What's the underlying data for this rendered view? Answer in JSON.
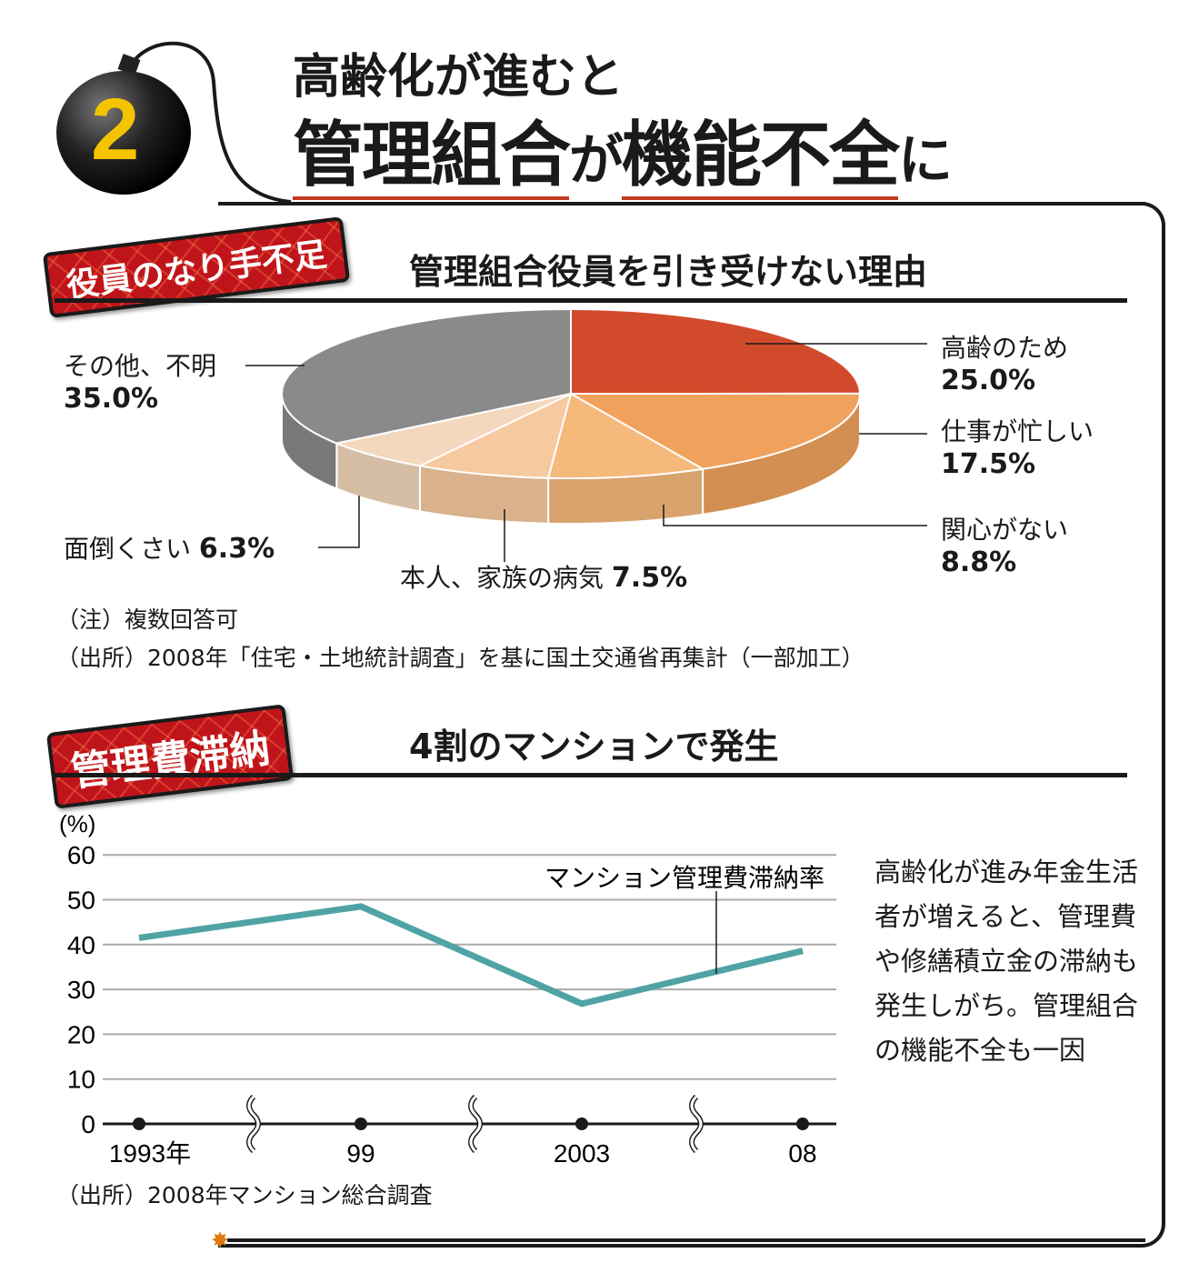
{
  "header": {
    "badge_number": "2",
    "title_line1": "高齢化が進むと",
    "title_line2_a": "管理組合",
    "title_line2_b": "が",
    "title_line2_c": "機能不全",
    "title_line2_d": "に"
  },
  "section1": {
    "tag": "役員のなり手不足",
    "title": "管理組合役員を引き受けない理由",
    "note": "（注）複数回答可",
    "source": "（出所）2008年「住宅・土地統計調査」を基に国土交通省再集計（一部加工）"
  },
  "section2": {
    "tag": "管理費滞納",
    "title": "4割のマンションで発生",
    "source": "（出所）2008年マンション総合調査",
    "body": "高齢化が進み年金生活者が増えると、管理費や修繕積立金の滞納も発生しがち。管理組合の機能不全も一因"
  },
  "chart_data": [
    {
      "type": "pie",
      "title": "管理組合役員を引き受けない理由",
      "slices": [
        {
          "label": "高齢のため",
          "value": 25.0,
          "value_label": "25.0%",
          "color": "#d24a2c"
        },
        {
          "label": "仕事が忙しい",
          "value": 17.5,
          "value_label": "17.5%",
          "color": "#f0a25c"
        },
        {
          "label": "関心がない",
          "value": 8.8,
          "value_label": "8.8%",
          "color": "#f5b97c"
        },
        {
          "label": "本人、家族の病気",
          "value": 7.5,
          "value_label": "7.5%",
          "color": "#f7c9a0"
        },
        {
          "label": "面倒くさい",
          "value": 6.3,
          "value_label": "6.3%",
          "color": "#f3d8bd"
        },
        {
          "label": "その他、不明",
          "value": 35.0,
          "value_label": "35.0%",
          "color": "#8a8a8a"
        }
      ]
    },
    {
      "type": "line",
      "title": "4割のマンションで発生",
      "ylabel": "(%)",
      "ylim": [
        0,
        60
      ],
      "yticks": [
        0,
        10,
        20,
        30,
        40,
        50,
        60
      ],
      "categories": [
        "1993年",
        "99",
        "2003",
        "08"
      ],
      "series": [
        {
          "name": "マンション管理費滞納率",
          "values": [
            41.5,
            48.5,
            26.8,
            38.6
          ],
          "color": "#4fa3a5"
        }
      ],
      "grid": true,
      "axis_breaks": true
    }
  ]
}
